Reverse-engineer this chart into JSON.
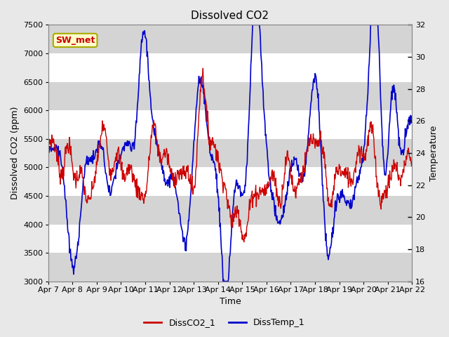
{
  "title": "Dissolved CO2",
  "xlabel": "Time",
  "ylabel_left": "Dissolved CO2 (ppm)",
  "ylabel_right": "Temperature",
  "annotation": "SW_met",
  "ylim_left": [
    3000,
    7500
  ],
  "ylim_right": [
    16,
    32
  ],
  "yticks_left": [
    3000,
    3500,
    4000,
    4500,
    5000,
    5500,
    6000,
    6500,
    7000,
    7500
  ],
  "yticks_right": [
    16,
    18,
    20,
    22,
    24,
    26,
    28,
    30,
    32
  ],
  "xtick_labels": [
    "Apr 7",
    "Apr 8",
    "Apr 9",
    "Apr 10",
    "Apr 11",
    "Apr 12",
    "Apr 13",
    "Apr 14",
    "Apr 15",
    "Apr 16",
    "Apr 17",
    "Apr 18",
    "Apr 19",
    "Apr 20",
    "Apr 21",
    "Apr 22"
  ],
  "color_co2": "#cc0000",
  "color_temp": "#0000cc",
  "legend_co2": "DissCO2_1",
  "legend_temp": "DissTemp_1",
  "bg_color": "#e8e8e8",
  "plot_bg": "#e8e8e8",
  "band_white": "#ffffff",
  "band_gray": "#d4d4d4",
  "title_fontsize": 11,
  "label_fontsize": 9,
  "tick_fontsize": 8,
  "legend_fontsize": 9
}
